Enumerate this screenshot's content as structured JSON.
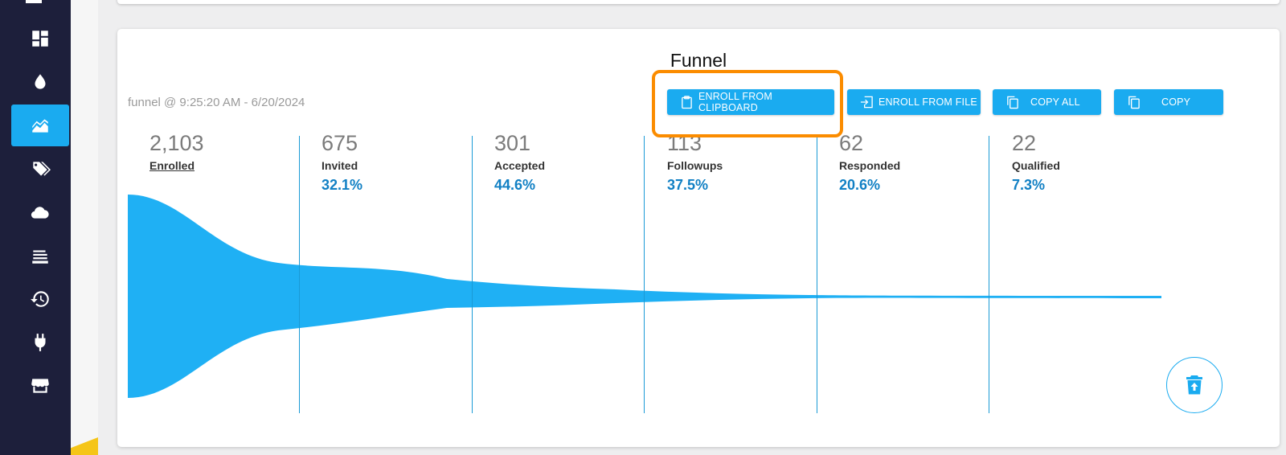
{
  "sidebar": {
    "items": [
      {
        "icon": "dashboard-icon"
      },
      {
        "icon": "drop-icon"
      },
      {
        "icon": "chart-area-icon",
        "active": true
      },
      {
        "icon": "tags-icon"
      },
      {
        "icon": "cloud-icon"
      },
      {
        "icon": "list-icon"
      },
      {
        "icon": "history-icon"
      },
      {
        "icon": "plug-icon"
      },
      {
        "icon": "store-icon"
      }
    ]
  },
  "card": {
    "title": "Funnel",
    "meta": "funnel @ 9:25:20 AM - 6/20/2024",
    "buttons": {
      "enroll_clipboard": "ENROLL FROM CLIPBOARD",
      "enroll_file": "ENROLL FROM FILE",
      "copy_all": "COPY ALL",
      "copy": "COPY"
    }
  },
  "stages": [
    {
      "count": "2,103",
      "label": "Enrolled",
      "pct": ""
    },
    {
      "count": "675",
      "label": "Invited",
      "pct": "32.1%"
    },
    {
      "count": "301",
      "label": "Accepted",
      "pct": "44.6%"
    },
    {
      "count": "113",
      "label": "Followups",
      "pct": "37.5%"
    },
    {
      "count": "62",
      "label": "Responded",
      "pct": "20.6%"
    },
    {
      "count": "22",
      "label": "Qualified",
      "pct": "7.3%"
    }
  ],
  "colors": {
    "accent": "#1aabf0",
    "sidebar": "#1d1f3b",
    "highlight": "#fb8c00",
    "pct_text": "#1180c4"
  }
}
